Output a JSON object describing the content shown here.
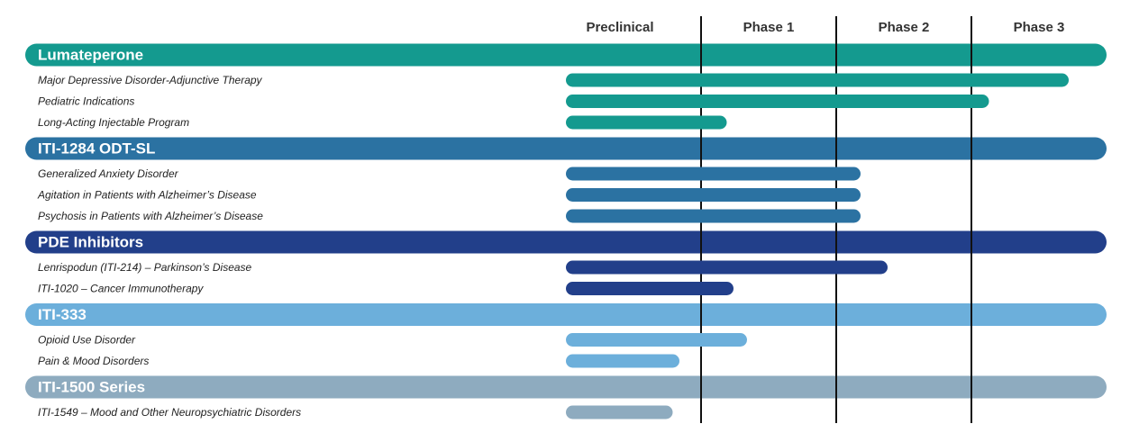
{
  "chart_data": {
    "type": "bar",
    "stages": [
      "Preclinical",
      "Phase 1",
      "Phase 2",
      "Phase 3"
    ],
    "xlim": [
      0,
      4
    ],
    "groups": [
      {
        "name": "Lumateperone",
        "color": "#149a8f",
        "programs": [
          {
            "name": "Major Depressive Disorder-Adjunctive Therapy",
            "value": 3.72
          },
          {
            "name": "Pediatric Indications",
            "value": 3.13
          },
          {
            "name": "Long-Acting Injectable Program",
            "value": 1.19
          }
        ]
      },
      {
        "name": "ITI-1284 ODT-SL",
        "color": "#2b72a2",
        "programs": [
          {
            "name": "Generalized Anxiety Disorder",
            "value": 2.18
          },
          {
            "name": "Agitation in Patients with Alzheimer’s Disease",
            "value": 2.18
          },
          {
            "name": "Psychosis in Patients with Alzheimer’s Disease",
            "value": 2.18
          }
        ]
      },
      {
        "name": "PDE Inhibitors",
        "color": "#223f8a",
        "programs": [
          {
            "name": "Lenrispodun (ITI-214) – Parkinson’s Disease",
            "value": 2.38
          },
          {
            "name": "ITI-1020 – Cancer Immunotherapy",
            "value": 1.24
          }
        ]
      },
      {
        "name": "ITI-333",
        "color": "#6cafdb",
        "programs": [
          {
            "name": "Opioid Use Disorder",
            "value": 1.34
          },
          {
            "name": "Pain & Mood Disorders",
            "value": 0.84
          }
        ]
      },
      {
        "name": "ITI-1500 Series",
        "color": "#8eabbf",
        "programs": [
          {
            "name": "ITI-1549 – Mood and Other Neuropsychiatric Disorders",
            "value": 0.79
          }
        ]
      }
    ]
  }
}
